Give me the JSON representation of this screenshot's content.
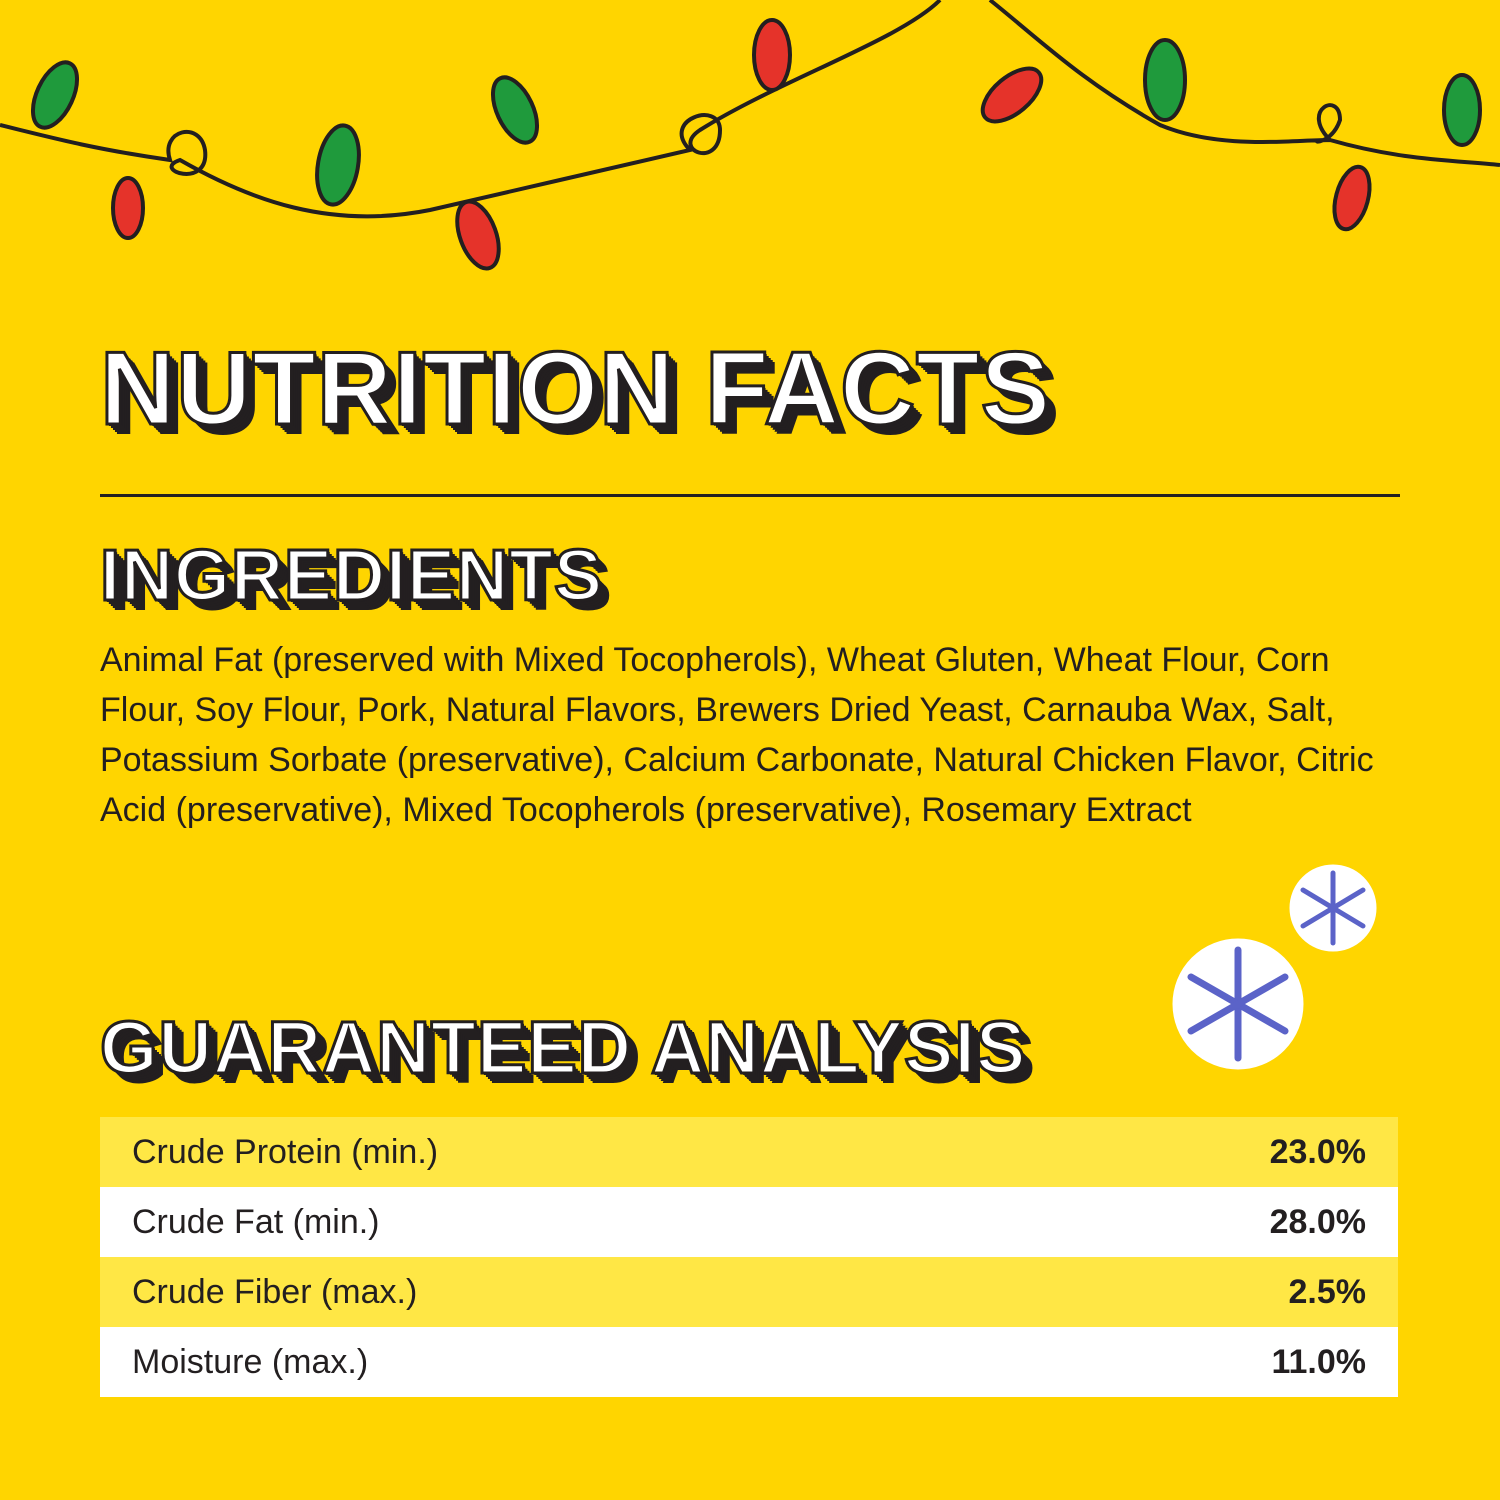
{
  "header": {
    "title": "NUTRITION FACTS"
  },
  "ingredients": {
    "heading": "INGREDIENTS",
    "text": "Animal Fat (preserved with Mixed Tocopherols), Wheat Gluten, Wheat Flour, Corn Flour, Soy Flour, Pork, Natural Flavors, Brewers Dried Yeast, Carnauba Wax, Salt, Potassium Sorbate (preservative), Calcium Carbonate, Natural Chicken Flavor, Citric Acid (preservative), Mixed Tocopherols (preservative), Rosemary Extract"
  },
  "analysis": {
    "heading": "GUARANTEED ANALYSIS",
    "rows": [
      [
        "Crude Protein (min.)",
        "23.0%"
      ],
      [
        "Crude Fat (min.)",
        "28.0%"
      ],
      [
        "Crude Fiber (max.)",
        "2.5%"
      ],
      [
        "Moisture (max.)",
        "11.0%"
      ]
    ]
  }
}
